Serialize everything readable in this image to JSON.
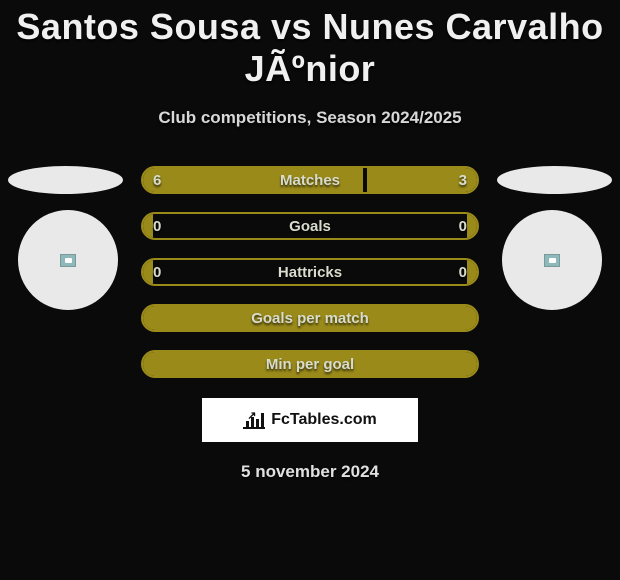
{
  "title": "Santos Sousa vs Nunes Carvalho JÃºnior",
  "subtitle": "Club competitions, Season 2024/2025",
  "date": "5 november 2024",
  "logo_text": "FcTables.com",
  "colors": {
    "background": "#0a0a0a",
    "bar_border": "#9a8a1a",
    "bar_fill": "#9a8a1a",
    "text_light": "#d8dccc",
    "shape_bg": "#e9e9e9"
  },
  "rows": [
    {
      "label": "Matches",
      "left_val": "6",
      "right_val": "3",
      "left_pct": 66,
      "right_pct": 33
    },
    {
      "label": "Goals",
      "left_val": "0",
      "right_val": "0",
      "left_pct": 3,
      "right_pct": 3
    },
    {
      "label": "Hattricks",
      "left_val": "0",
      "right_val": "0",
      "left_pct": 3,
      "right_pct": 3
    },
    {
      "label": "Goals per match",
      "left_val": "",
      "right_val": "",
      "left_pct": 100,
      "right_pct": 0
    },
    {
      "label": "Min per goal",
      "left_val": "",
      "right_val": "",
      "left_pct": 100,
      "right_pct": 0
    }
  ]
}
